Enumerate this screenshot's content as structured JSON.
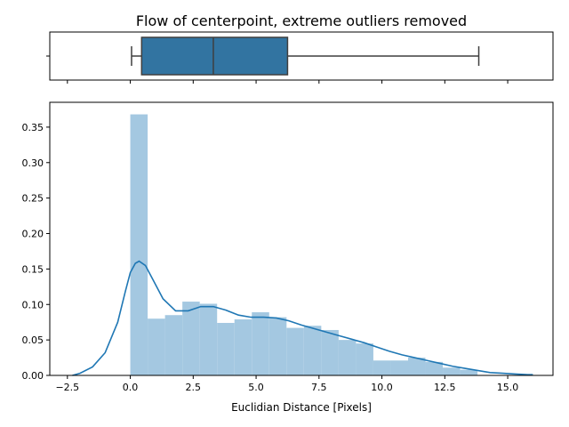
{
  "chart_data": [
    {
      "type": "box",
      "title": "Flow of centerpoint, extreme outliers removed",
      "box_color": "#3274a1",
      "xlim": [
        -3.2,
        16.8
      ],
      "whisker_low": 0.05,
      "q1": 0.45,
      "median": 3.3,
      "q3": 6.25,
      "whisker_high": 13.85
    },
    {
      "type": "histogram",
      "xlabel": "Euclidian Distance [Pixels]",
      "ylabel": "",
      "xlim": [
        -3.2,
        16.8
      ],
      "ylim": [
        0,
        0.385
      ],
      "xticks": [
        -2.5,
        0.0,
        2.5,
        5.0,
        7.5,
        10.0,
        12.5,
        15.0
      ],
      "xtick_labels": [
        "−2.5",
        "0.0",
        "2.5",
        "5.0",
        "7.5",
        "10.0",
        "12.5",
        "15.0"
      ],
      "yticks": [
        0.0,
        0.05,
        0.1,
        0.15,
        0.2,
        0.25,
        0.3,
        0.35
      ],
      "ytick_labels": [
        "0.00",
        "0.05",
        "0.10",
        "0.15",
        "0.20",
        "0.25",
        "0.30",
        "0.35"
      ],
      "bar_color": "#a4c8e1",
      "kde_color": "#1f77b4",
      "bins": [
        {
          "x0": 0.0,
          "x1": 0.69,
          "value": 0.368
        },
        {
          "x0": 0.69,
          "x1": 1.38,
          "value": 0.08
        },
        {
          "x0": 1.38,
          "x1": 2.07,
          "value": 0.085
        },
        {
          "x0": 2.07,
          "x1": 2.76,
          "value": 0.104
        },
        {
          "x0": 2.76,
          "x1": 3.45,
          "value": 0.101
        },
        {
          "x0": 3.45,
          "x1": 4.14,
          "value": 0.074
        },
        {
          "x0": 4.14,
          "x1": 4.83,
          "value": 0.079
        },
        {
          "x0": 4.83,
          "x1": 5.52,
          "value": 0.089
        },
        {
          "x0": 5.52,
          "x1": 6.21,
          "value": 0.082
        },
        {
          "x0": 6.21,
          "x1": 6.9,
          "value": 0.067
        },
        {
          "x0": 6.9,
          "x1": 7.59,
          "value": 0.07
        },
        {
          "x0": 7.59,
          "x1": 8.28,
          "value": 0.064
        },
        {
          "x0": 8.28,
          "x1": 8.97,
          "value": 0.05
        },
        {
          "x0": 8.97,
          "x1": 9.66,
          "value": 0.045
        },
        {
          "x0": 9.66,
          "x1": 10.35,
          "value": 0.021
        },
        {
          "x0": 10.35,
          "x1": 11.04,
          "value": 0.021
        },
        {
          "x0": 11.04,
          "x1": 11.73,
          "value": 0.025
        },
        {
          "x0": 11.73,
          "x1": 12.42,
          "value": 0.019
        },
        {
          "x0": 12.42,
          "x1": 13.11,
          "value": 0.011
        },
        {
          "x0": 13.11,
          "x1": 13.8,
          "value": 0.008
        }
      ],
      "kde": {
        "x": [
          -2.3,
          -2.0,
          -1.5,
          -1.0,
          -0.5,
          -0.2,
          0.0,
          0.2,
          0.35,
          0.6,
          0.9,
          1.3,
          1.8,
          2.3,
          2.8,
          3.3,
          3.8,
          4.3,
          4.8,
          5.3,
          5.8,
          6.3,
          6.8,
          7.3,
          7.8,
          8.3,
          8.8,
          9.3,
          9.8,
          10.3,
          10.8,
          11.3,
          11.8,
          12.3,
          12.8,
          13.3,
          13.8,
          14.3,
          14.8,
          15.3,
          15.8,
          16.0
        ],
        "y": [
          0.0,
          0.003,
          0.012,
          0.032,
          0.075,
          0.118,
          0.145,
          0.158,
          0.161,
          0.155,
          0.135,
          0.108,
          0.091,
          0.091,
          0.097,
          0.097,
          0.092,
          0.085,
          0.082,
          0.082,
          0.081,
          0.077,
          0.071,
          0.066,
          0.061,
          0.056,
          0.051,
          0.046,
          0.04,
          0.034,
          0.029,
          0.025,
          0.021,
          0.017,
          0.013,
          0.01,
          0.007,
          0.004,
          0.003,
          0.002,
          0.001,
          0.001
        ]
      }
    }
  ]
}
